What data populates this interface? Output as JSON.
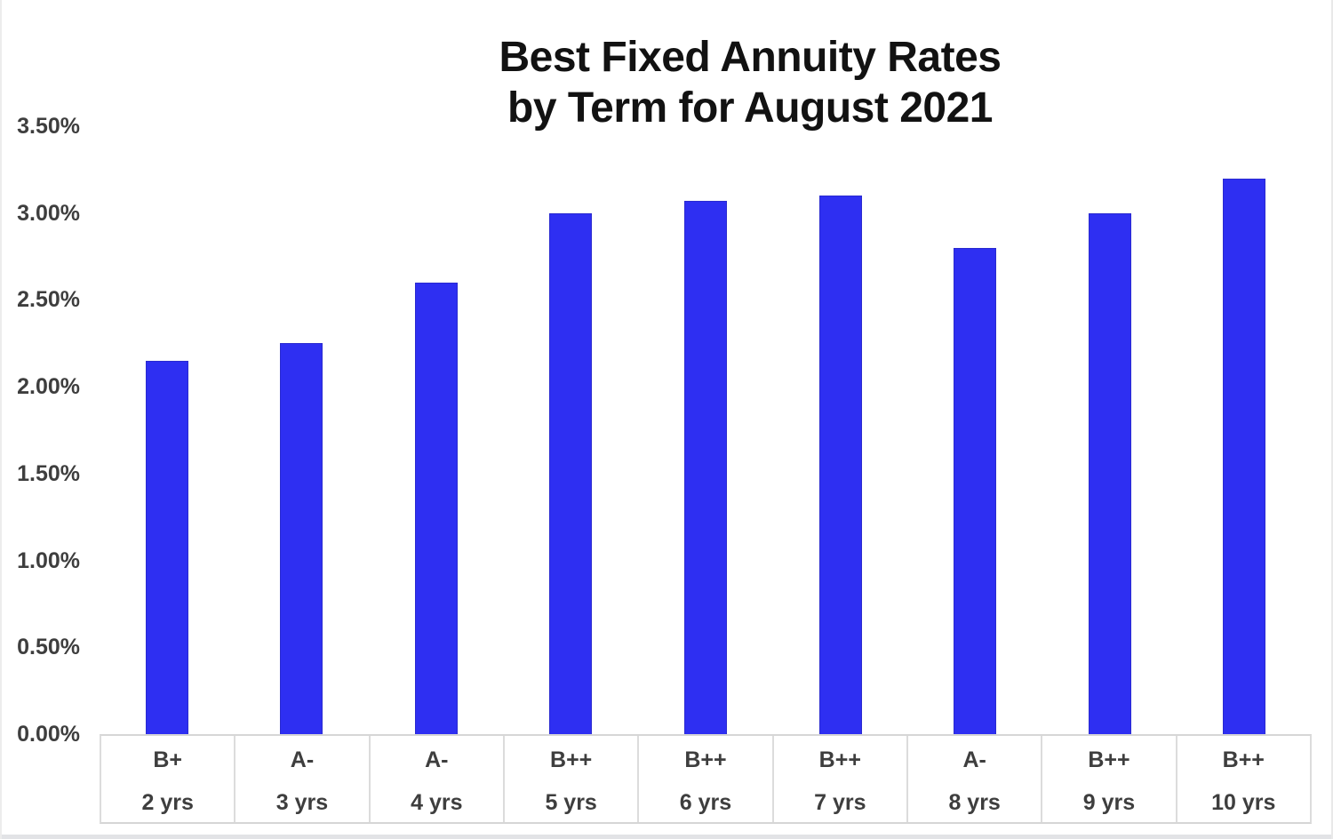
{
  "title": {
    "line1": "Best Fixed Annuity Rates",
    "line2": "by Term for August 2021"
  },
  "chart_data": {
    "type": "bar",
    "title": "Best Fixed Annuity Rates by Term for August 2021",
    "categories": [
      {
        "rating": "B+",
        "term": "2 yrs"
      },
      {
        "rating": "A-",
        "term": "3 yrs"
      },
      {
        "rating": "A-",
        "term": "4 yrs"
      },
      {
        "rating": "B++",
        "term": "5 yrs"
      },
      {
        "rating": "B++",
        "term": "6 yrs"
      },
      {
        "rating": "B++",
        "term": "7 yrs"
      },
      {
        "rating": "A-",
        "term": "8 yrs"
      },
      {
        "rating": "B++",
        "term": "9 yrs"
      },
      {
        "rating": "B++",
        "term": "10 yrs"
      }
    ],
    "values": [
      2.15,
      2.25,
      2.6,
      3.0,
      3.07,
      3.1,
      2.8,
      3.0,
      3.2
    ],
    "unit": "percent",
    "xlabel": "",
    "ylabel": "",
    "y_axis": {
      "min": 0,
      "max": 3.5,
      "tick_step": 0.5,
      "ticks": [
        {
          "label": "3.50%",
          "value": 3.5
        },
        {
          "label": "3.00%",
          "value": 3.0
        },
        {
          "label": "2.50%",
          "value": 2.5
        },
        {
          "label": "2.00%",
          "value": 2.0
        },
        {
          "label": "1.50%",
          "value": 1.5
        },
        {
          "label": "1.00%",
          "value": 1.0
        },
        {
          "label": "0.50%",
          "value": 0.5
        },
        {
          "label": "0.00%",
          "value": 0.0
        }
      ]
    },
    "grid": false,
    "legend": false,
    "bar_color": "#2e2ff2",
    "bar_border_color": "#2a2ad0",
    "axis_line_color": "#d6d6d6",
    "label_color": "#3e3e3e",
    "title_color": "#121212"
  }
}
